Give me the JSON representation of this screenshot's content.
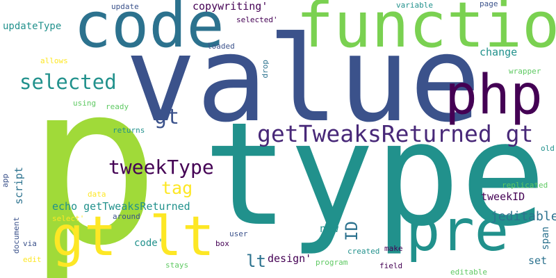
{
  "colors": {
    "background": "#ffffff",
    "palette": [
      "#440154",
      "#3b528b",
      "#21918c",
      "#5ec962",
      "#fde725"
    ]
  },
  "words": [
    {
      "id": "p",
      "text": "p"
    },
    {
      "id": "type",
      "text": "type"
    },
    {
      "id": "value",
      "text": "value"
    },
    {
      "id": "function",
      "text": "function"
    },
    {
      "id": "code",
      "text": "code"
    },
    {
      "id": "gt-lt",
      "text": "gt lt"
    },
    {
      "id": "php",
      "text": "php"
    },
    {
      "id": "pre",
      "text": "pre"
    },
    {
      "id": "getTweaksReturned-gt",
      "text": "getTweaksReturned gt"
    },
    {
      "id": "selected",
      "text": "selected"
    },
    {
      "id": "tweekType",
      "text": "tweekType"
    },
    {
      "id": "gt",
      "text": "gt"
    },
    {
      "id": "tag",
      "text": "tag"
    },
    {
      "id": "echo-getTweaksReturned",
      "text": "echo getTweaksReturned"
    },
    {
      "id": "lt",
      "text": "lt"
    },
    {
      "id": "ID",
      "text": "ID"
    },
    {
      "id": "copywriting",
      "text": "copywriting'"
    },
    {
      "id": "updateType",
      "text": "updateType"
    },
    {
      "id": "jeditable",
      "text": "jeditable"
    },
    {
      "id": "change",
      "text": "change"
    },
    {
      "id": "tweekID",
      "text": "tweekID"
    },
    {
      "id": "script",
      "text": "script"
    },
    {
      "id": "code2",
      "text": "code'"
    },
    {
      "id": "design",
      "text": "design'"
    },
    {
      "id": "new",
      "text": "new"
    },
    {
      "id": "set",
      "text": "set"
    },
    {
      "id": "span",
      "text": "span"
    },
    {
      "id": "update",
      "text": "update"
    },
    {
      "id": "variable",
      "text": "variable"
    },
    {
      "id": "page",
      "text": "page"
    },
    {
      "id": "selected-q",
      "text": "selected'"
    },
    {
      "id": "loaded",
      "text": "loaded"
    },
    {
      "id": "drop",
      "text": "drop"
    },
    {
      "id": "wrapper",
      "text": "wrapper"
    },
    {
      "id": "allows",
      "text": "allows"
    },
    {
      "id": "using",
      "text": "using"
    },
    {
      "id": "ready",
      "text": "ready"
    },
    {
      "id": "returns",
      "text": "returns"
    },
    {
      "id": "old",
      "text": "old"
    },
    {
      "id": "app",
      "text": "app"
    },
    {
      "id": "data",
      "text": "data"
    },
    {
      "id": "replicated",
      "text": "replicated"
    },
    {
      "id": "around",
      "text": "around"
    },
    {
      "id": "select",
      "text": "select'"
    },
    {
      "id": "document",
      "text": "document"
    },
    {
      "id": "user",
      "text": "user"
    },
    {
      "id": "box",
      "text": "box"
    },
    {
      "id": "via",
      "text": "via"
    },
    {
      "id": "created",
      "text": "created"
    },
    {
      "id": "make",
      "text": "make"
    },
    {
      "id": "program",
      "text": "program"
    },
    {
      "id": "edit",
      "text": "edit"
    },
    {
      "id": "stays",
      "text": "stays"
    },
    {
      "id": "field",
      "text": "field"
    },
    {
      "id": "editable",
      "text": "editable"
    }
  ]
}
